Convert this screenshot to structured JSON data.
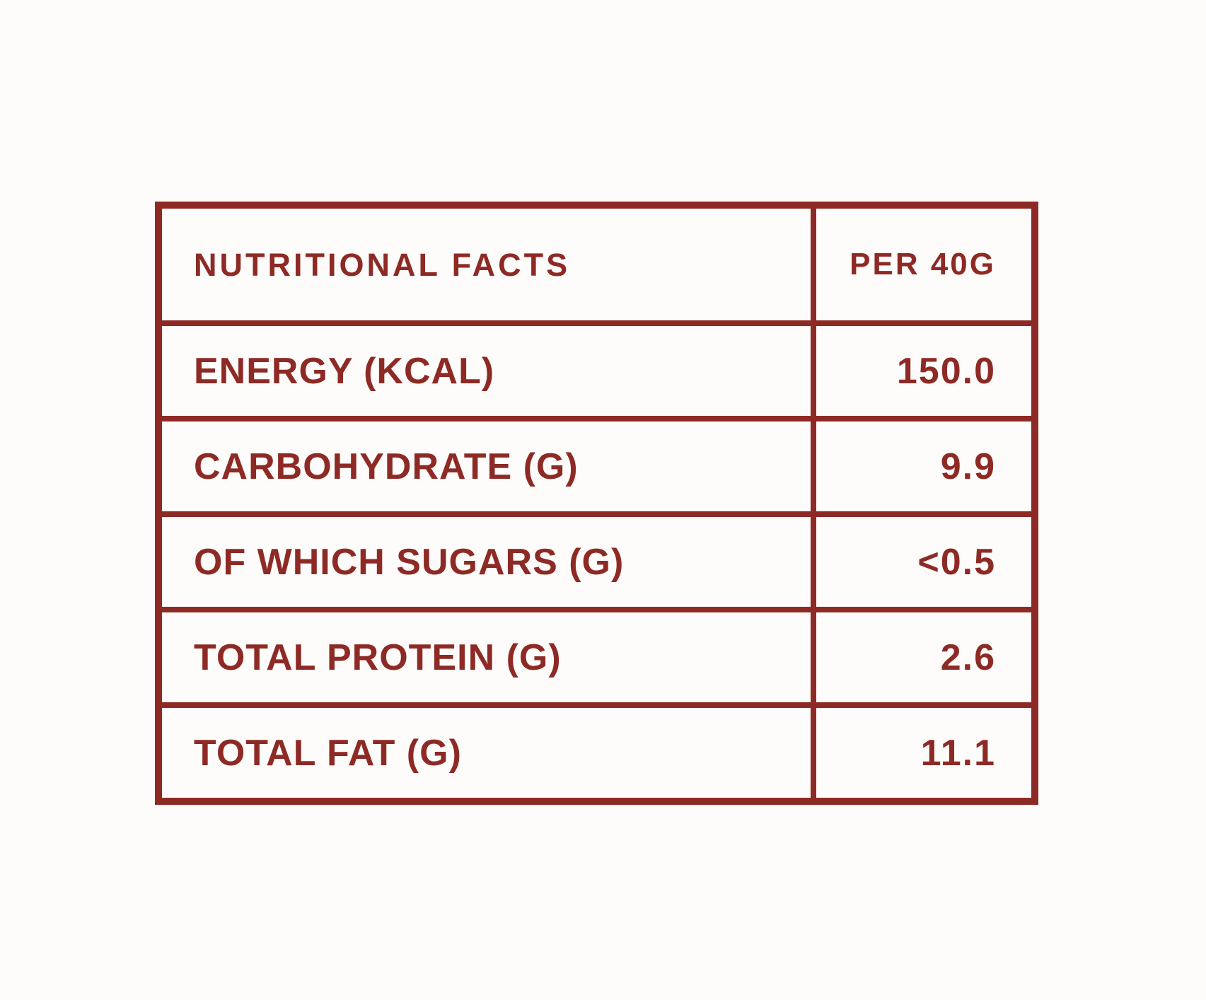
{
  "colors": {
    "accent": "#8E2A25",
    "background": "#FDFCFA"
  },
  "table": {
    "header": {
      "label": "NUTRITIONAL FACTS",
      "value": "PER 40G"
    },
    "rows": [
      {
        "label": "ENERGY (KCAL)",
        "value": "150.0"
      },
      {
        "label": "CARBOHYDRATE (G)",
        "value": "9.9"
      },
      {
        "label": "OF WHICH SUGARS (G)",
        "value": "<0.5"
      },
      {
        "label": "TOTAL PROTEIN (G)",
        "value": "2.6"
      },
      {
        "label": "TOTAL FAT (G)",
        "value": "11.1"
      }
    ]
  },
  "chart_data": {
    "type": "table",
    "title": "NUTRITIONAL FACTS",
    "columns": [
      "NUTRITIONAL FACTS",
      "PER 40G"
    ],
    "rows": [
      [
        "ENERGY (KCAL)",
        "150.0"
      ],
      [
        "CARBOHYDRATE (G)",
        "9.9"
      ],
      [
        "OF WHICH SUGARS (G)",
        "<0.5"
      ],
      [
        "TOTAL PROTEIN (G)",
        "2.6"
      ],
      [
        "TOTAL FAT (G)",
        "11.1"
      ]
    ]
  }
}
